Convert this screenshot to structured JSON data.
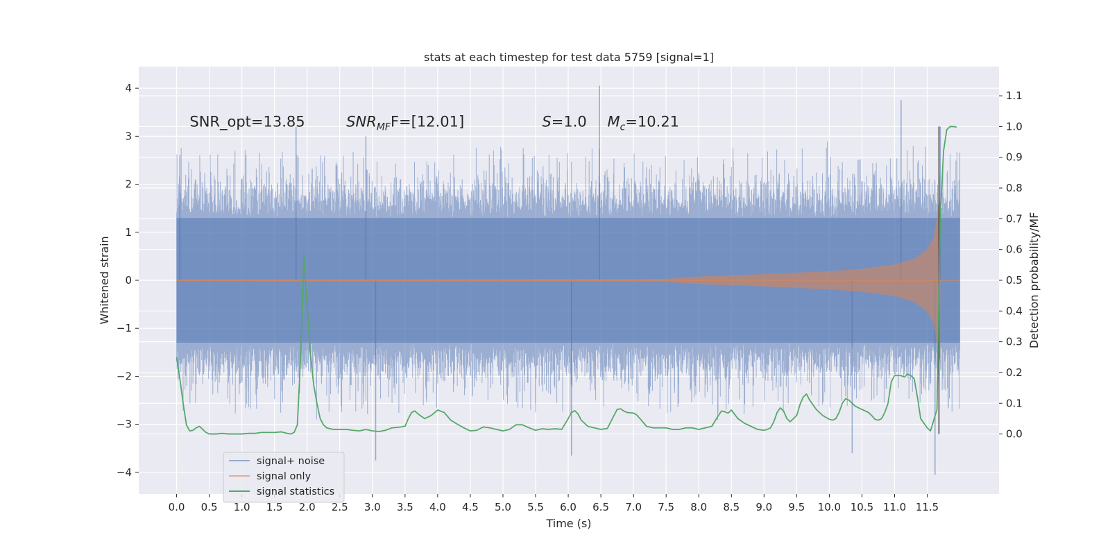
{
  "chart_data": {
    "type": "line",
    "title": "stats at each timestep for test data 5759 [signal=1]",
    "xlabel": "Time (s)",
    "ylabel": "Whitened strain",
    "ylabel_right": "Detection probability/MF",
    "xlim": [
      -0.58,
      12.6
    ],
    "ylim": [
      -4.45,
      4.45
    ],
    "ylim_right": [
      -0.195,
      1.195
    ],
    "x_ticks": [
      0.0,
      0.5,
      1.0,
      1.5,
      2.0,
      2.5,
      3.0,
      3.5,
      4.0,
      4.5,
      5.0,
      5.5,
      6.0,
      6.5,
      7.0,
      7.5,
      8.0,
      8.5,
      9.0,
      9.5,
      10.0,
      10.5,
      11.0,
      11.5
    ],
    "x_tick_labels": [
      "0.0",
      "0.5",
      "1.0",
      "1.5",
      "2.0",
      "2.5",
      "3.0",
      "3.5",
      "4.0",
      "4.5",
      "5.0",
      "5.5",
      "6.0",
      "6.5",
      "7.0",
      "7.5",
      "8.0",
      "8.5",
      "9.0",
      "9.5",
      "10.0",
      "10.5",
      "11.0",
      "11.5"
    ],
    "y_ticks": [
      -4,
      -3,
      -2,
      -1,
      0,
      1,
      2,
      3,
      4
    ],
    "y_tick_labels": [
      "−4",
      "−3",
      "−2",
      "−1",
      "0",
      "1",
      "2",
      "3",
      "4"
    ],
    "y_right_ticks": [
      0.0,
      0.1,
      0.2,
      0.3,
      0.4,
      0.5,
      0.6,
      0.7,
      0.8,
      0.9,
      1.0,
      1.1
    ],
    "y_right_tick_labels": [
      "0.0",
      "0.1",
      "0.2",
      "0.3",
      "0.4",
      "0.5",
      "0.6",
      "0.7",
      "0.8",
      "0.9",
      "1.0",
      "1.1"
    ],
    "grid": true,
    "legend_position": "lower-left",
    "annotations": [
      {
        "label": "SNR_opt=13.85",
        "x": 0.2,
        "y": 3.3
      },
      {
        "label": "SNR",
        "sub": "MF",
        "rest": "F=[12.01]",
        "x": 2.6,
        "y": 3.3
      },
      {
        "label": "S",
        "rest": "=1.0",
        "x": 5.6,
        "y": 3.3
      },
      {
        "label": "M",
        "sub": "c",
        "rest": "=10.21",
        "x": 6.6,
        "y": 3.3
      }
    ],
    "merger_marker": {
      "x": 11.68,
      "y_range": [
        0.0,
        1.0
      ],
      "color": "#3f3f3f"
    },
    "series": [
      {
        "name": "signal+ noise",
        "color": "#4c72b0",
        "x_range": [
          0.0,
          12.0
        ],
        "envelope_upper": 1.3,
        "envelope_lower": -1.3,
        "notable_peaks": [
          [
            0.05,
            2.6
          ],
          [
            1.83,
            3.2
          ],
          [
            2.9,
            3.0
          ],
          [
            6.48,
            4.05
          ],
          [
            11.1,
            3.75
          ],
          [
            11.7,
            3.2
          ],
          [
            3.05,
            -3.75
          ],
          [
            6.05,
            -3.65
          ],
          [
            10.35,
            -3.6
          ],
          [
            11.62,
            -4.05
          ]
        ]
      },
      {
        "name": "signal only",
        "color": "#dd8452",
        "x_range": [
          0.0,
          12.0
        ],
        "envelope": [
          [
            0,
            0.02
          ],
          [
            7.5,
            0.03
          ],
          [
            8.0,
            0.08
          ],
          [
            9.0,
            0.13
          ],
          [
            10.0,
            0.19
          ],
          [
            10.5,
            0.24
          ],
          [
            11.0,
            0.33
          ],
          [
            11.3,
            0.45
          ],
          [
            11.5,
            0.65
          ],
          [
            11.6,
            0.9
          ],
          [
            11.67,
            1.5
          ],
          [
            11.7,
            1.75
          ]
        ]
      },
      {
        "name": "signal statistics",
        "color": "#55a868",
        "axis": "right",
        "x": [
          0.0,
          0.05,
          0.1,
          0.15,
          0.2,
          0.25,
          0.3,
          0.35,
          0.4,
          0.45,
          0.5,
          0.6,
          0.7,
          0.8,
          0.9,
          1.0,
          1.1,
          1.2,
          1.3,
          1.4,
          1.5,
          1.6,
          1.7,
          1.75,
          1.8,
          1.85,
          1.9,
          1.95,
          2.0,
          2.05,
          2.1,
          2.15,
          2.2,
          2.25,
          2.3,
          2.4,
          2.5,
          2.6,
          2.7,
          2.8,
          2.9,
          3.0,
          3.1,
          3.2,
          3.3,
          3.4,
          3.5,
          3.55,
          3.6,
          3.65,
          3.7,
          3.8,
          3.9,
          4.0,
          4.1,
          4.2,
          4.3,
          4.4,
          4.5,
          4.6,
          4.7,
          4.8,
          4.9,
          5.0,
          5.1,
          5.2,
          5.3,
          5.4,
          5.5,
          5.6,
          5.7,
          5.8,
          5.9,
          6.0,
          6.05,
          6.1,
          6.15,
          6.2,
          6.3,
          6.4,
          6.5,
          6.6,
          6.7,
          6.75,
          6.8,
          6.85,
          6.9,
          7.0,
          7.05,
          7.1,
          7.2,
          7.3,
          7.4,
          7.5,
          7.6,
          7.7,
          7.8,
          7.9,
          8.0,
          8.1,
          8.2,
          8.3,
          8.35,
          8.4,
          8.45,
          8.5,
          8.6,
          8.7,
          8.8,
          8.9,
          9.0,
          9.05,
          9.1,
          9.15,
          9.2,
          9.25,
          9.3,
          9.35,
          9.4,
          9.5,
          9.55,
          9.6,
          9.65,
          9.7,
          9.8,
          9.9,
          10.0,
          10.05,
          10.1,
          10.15,
          10.2,
          10.25,
          10.3,
          10.4,
          10.5,
          10.55,
          10.6,
          10.65,
          10.7,
          10.75,
          10.8,
          10.85,
          10.9,
          10.95,
          11.0,
          11.05,
          11.1,
          11.15,
          11.2,
          11.25,
          11.3,
          11.35,
          11.4,
          11.5,
          11.55,
          11.6,
          11.65,
          11.7,
          11.75,
          11.8,
          11.85,
          11.9,
          11.95
        ],
        "values": [
          0.25,
          0.18,
          0.1,
          0.03,
          0.01,
          0.012,
          0.02,
          0.025,
          0.015,
          0.005,
          0.0,
          0.0,
          0.002,
          0.0,
          0.0,
          0.0,
          0.002,
          0.002,
          0.005,
          0.005,
          0.005,
          0.007,
          0.002,
          0.0,
          0.005,
          0.03,
          0.25,
          0.58,
          0.42,
          0.26,
          0.16,
          0.1,
          0.05,
          0.03,
          0.02,
          0.015,
          0.015,
          0.015,
          0.012,
          0.01,
          0.015,
          0.01,
          0.008,
          0.012,
          0.02,
          0.022,
          0.025,
          0.05,
          0.07,
          0.075,
          0.065,
          0.05,
          0.06,
          0.078,
          0.07,
          0.045,
          0.032,
          0.02,
          0.01,
          0.012,
          0.023,
          0.02,
          0.015,
          0.01,
          0.015,
          0.03,
          0.03,
          0.02,
          0.012,
          0.017,
          0.015,
          0.017,
          0.015,
          0.05,
          0.07,
          0.076,
          0.065,
          0.045,
          0.025,
          0.02,
          0.015,
          0.018,
          0.06,
          0.08,
          0.082,
          0.075,
          0.07,
          0.068,
          0.062,
          0.05,
          0.025,
          0.02,
          0.02,
          0.02,
          0.015,
          0.015,
          0.02,
          0.02,
          0.015,
          0.02,
          0.025,
          0.06,
          0.075,
          0.072,
          0.068,
          0.078,
          0.05,
          0.035,
          0.025,
          0.015,
          0.012,
          0.015,
          0.02,
          0.04,
          0.07,
          0.085,
          0.075,
          0.05,
          0.04,
          0.06,
          0.095,
          0.12,
          0.13,
          0.11,
          0.08,
          0.06,
          0.048,
          0.045,
          0.05,
          0.07,
          0.1,
          0.115,
          0.11,
          0.09,
          0.08,
          0.075,
          0.07,
          0.06,
          0.048,
          0.045,
          0.05,
          0.07,
          0.1,
          0.17,
          0.19,
          0.19,
          0.19,
          0.185,
          0.195,
          0.19,
          0.18,
          0.12,
          0.05,
          0.02,
          0.01,
          0.045,
          0.08,
          0.7,
          0.92,
          0.99,
          1.0,
          1.0,
          0.998
        ]
      }
    ]
  }
}
